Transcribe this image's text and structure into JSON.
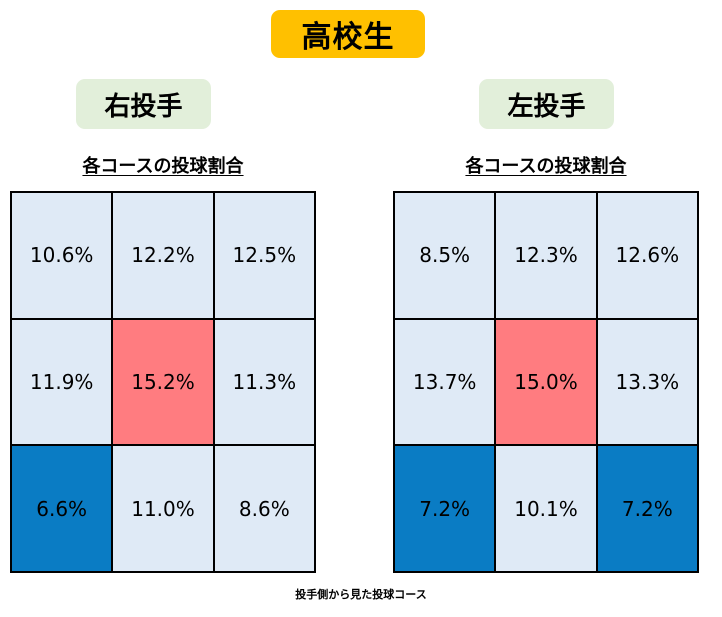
{
  "main_title": "高校生",
  "footer": "投手側から見た投球コース",
  "colors": {
    "default": "#dfeaf6",
    "highest": "#ff7c80",
    "lowest": "#0a7cc4",
    "title_bg": "#ffc000",
    "label_bg": "#e2efda"
  },
  "chart_data": [
    {
      "type": "heatmap",
      "title": "各コースの投球割合",
      "pitcher_label": "右投手",
      "unit": "%",
      "rows": 3,
      "cols": 3,
      "values": [
        [
          10.6,
          12.2,
          12.5
        ],
        [
          11.9,
          15.2,
          11.3
        ],
        [
          6.6,
          11.0,
          8.6
        ]
      ],
      "labels": [
        [
          "10.6%",
          "12.2%",
          "12.5%"
        ],
        [
          "11.9%",
          "15.2%",
          "11.3%"
        ],
        [
          "6.6%",
          "11.0%",
          "8.6%"
        ]
      ],
      "highlight": [
        [
          "default",
          "default",
          "default"
        ],
        [
          "default",
          "highest",
          "default"
        ],
        [
          "lowest",
          "default",
          "default"
        ]
      ]
    },
    {
      "type": "heatmap",
      "title": "各コースの投球割合",
      "pitcher_label": "左投手",
      "unit": "%",
      "rows": 3,
      "cols": 3,
      "values": [
        [
          8.5,
          12.3,
          12.6
        ],
        [
          13.7,
          15.0,
          13.3
        ],
        [
          7.2,
          10.1,
          7.2
        ]
      ],
      "labels": [
        [
          "8.5%",
          "12.3%",
          "12.6%"
        ],
        [
          "13.7%",
          "15.0%",
          "13.3%"
        ],
        [
          "7.2%",
          "10.1%",
          "7.2%"
        ]
      ],
      "highlight": [
        [
          "default",
          "default",
          "default"
        ],
        [
          "default",
          "highest",
          "default"
        ],
        [
          "lowest",
          "default",
          "lowest"
        ]
      ]
    }
  ]
}
